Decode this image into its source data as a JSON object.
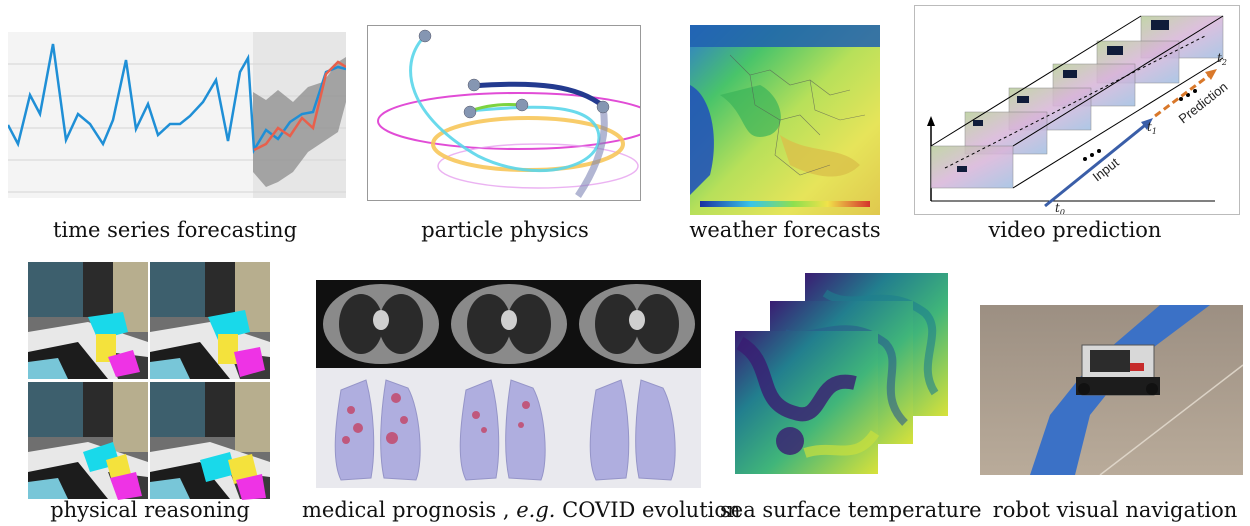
{
  "captions": {
    "time_series": "time series forecasting",
    "particle": "particle physics",
    "weather": "weather forecasts",
    "video": "video prediction",
    "physical": "physical reasoning",
    "medical_prefix": "medical prognosis ,",
    "medical_eg": "e.g.",
    "medical_suffix": "COVID evolution",
    "sea": "sea surface temperature",
    "robot": "robot visual navigation"
  },
  "video_labels": {
    "input": "Input",
    "prediction": "Prediction",
    "t0": "t",
    "t0_sub": "0",
    "t1": "t",
    "t1_sub": "1",
    "t2": "t",
    "t2_sub": "2"
  },
  "colors": {
    "series_blue": "#1f8fd6",
    "forecast_red": "#e8604c",
    "uncertainty_gray": "#9a9a9a",
    "arrow_blue": "#3a5ea8",
    "arrow_orange": "#d9782a"
  }
}
